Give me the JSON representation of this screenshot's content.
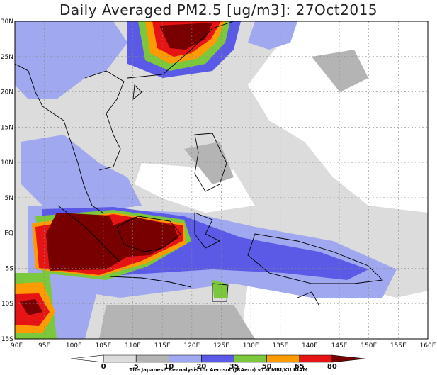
{
  "title": "Daily Averaged PM2.5 [ug/m3]: 27Oct2015",
  "credit": "The Japanese Reanalysis for Aerosol (JRAero) v1.0 MRI/KU RIAM",
  "map": {
    "lon_range": [
      90,
      160
    ],
    "lat_range": [
      -15,
      30
    ],
    "lat_ticks": [
      "30N",
      "25N",
      "20N",
      "15N",
      "10N",
      "5N",
      "EQ",
      "5S",
      "10S",
      "15S"
    ],
    "lon_ticks": [
      "90E",
      "95E",
      "100E",
      "105E",
      "110E",
      "115E",
      "120E",
      "125E",
      "130E",
      "135E",
      "140E",
      "145E",
      "150E",
      "155E",
      "160E"
    ]
  },
  "colorbar": {
    "labels": [
      "0",
      "5",
      "10",
      "20",
      "35",
      "50",
      "65",
      "80"
    ],
    "colors": [
      "#ffffff",
      "#dcdcdc",
      "#b4b4b4",
      "#a0a8f0",
      "#5a5ae6",
      "#7cc83c",
      "#ff9b00",
      "#e61414",
      "#780000"
    ]
  }
}
